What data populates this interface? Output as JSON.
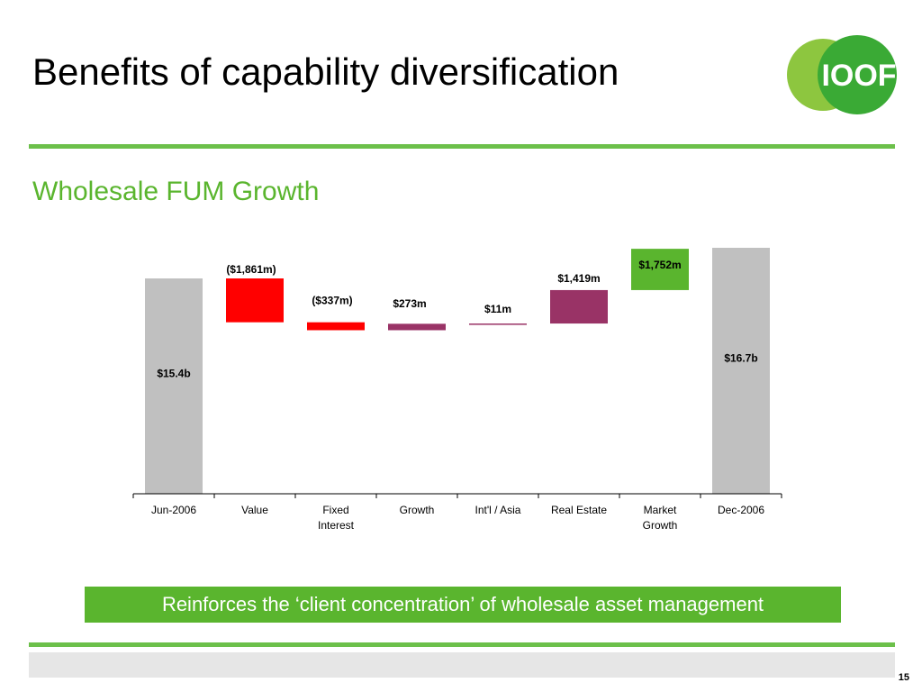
{
  "slide": {
    "title": "Benefits of capability diversification",
    "subtitle": "Wholesale FUM Growth",
    "banner": "Reinforces the ‘client concentration’ of wholesale asset management",
    "page_number": "15"
  },
  "logo": {
    "text": "IOOF",
    "colors": {
      "dark": "#3aaa35",
      "light": "#8dc63f"
    }
  },
  "colors": {
    "rule": "#6cc04a",
    "subtitle": "#5ab52e",
    "banner": "#5ab52e"
  },
  "chart_data": {
    "type": "waterfall",
    "title": "",
    "xlabel": "",
    "ylabel": "",
    "unit": "$m",
    "ylim": [
      0,
      17000
    ],
    "categories": [
      "Jun-2006",
      "Value",
      "Fixed Interest",
      "Growth",
      "Int'l / Asia",
      "Real Estate",
      "Market Growth",
      "Dec-2006"
    ],
    "category_lines": [
      [
        "Jun-2006"
      ],
      [
        "Value"
      ],
      [
        "Fixed",
        "Interest"
      ],
      [
        "Growth"
      ],
      [
        "Int'l / Asia"
      ],
      [
        "Real Estate"
      ],
      [
        "Market",
        "Growth"
      ],
      [
        "Dec-2006"
      ]
    ],
    "bars": [
      {
        "category": "Jun-2006",
        "kind": "total",
        "value": 15400,
        "label": "$15.4b",
        "color": "#c0c0c0"
      },
      {
        "category": "Value",
        "kind": "change",
        "value": -1861,
        "label": "($1,861m)",
        "color": "#ff0000"
      },
      {
        "category": "Fixed Interest",
        "kind": "change",
        "value": -337,
        "label": "($337m)",
        "color": "#ff0000"
      },
      {
        "category": "Growth",
        "kind": "change",
        "value": 273,
        "label": "$273m",
        "color": "#993366"
      },
      {
        "category": "Int'l / Asia",
        "kind": "change",
        "value": 11,
        "label": "$11m",
        "color": "#993366"
      },
      {
        "category": "Real Estate",
        "kind": "change",
        "value": 1419,
        "label": "$1,419m",
        "color": "#993366"
      },
      {
        "category": "Market Growth",
        "kind": "change",
        "value": 1752,
        "label": "$1,752m",
        "color": "#5ab52e"
      },
      {
        "category": "Dec-2006",
        "kind": "total",
        "value": 16700,
        "label": "$16.7b",
        "color": "#c0c0c0"
      }
    ]
  }
}
